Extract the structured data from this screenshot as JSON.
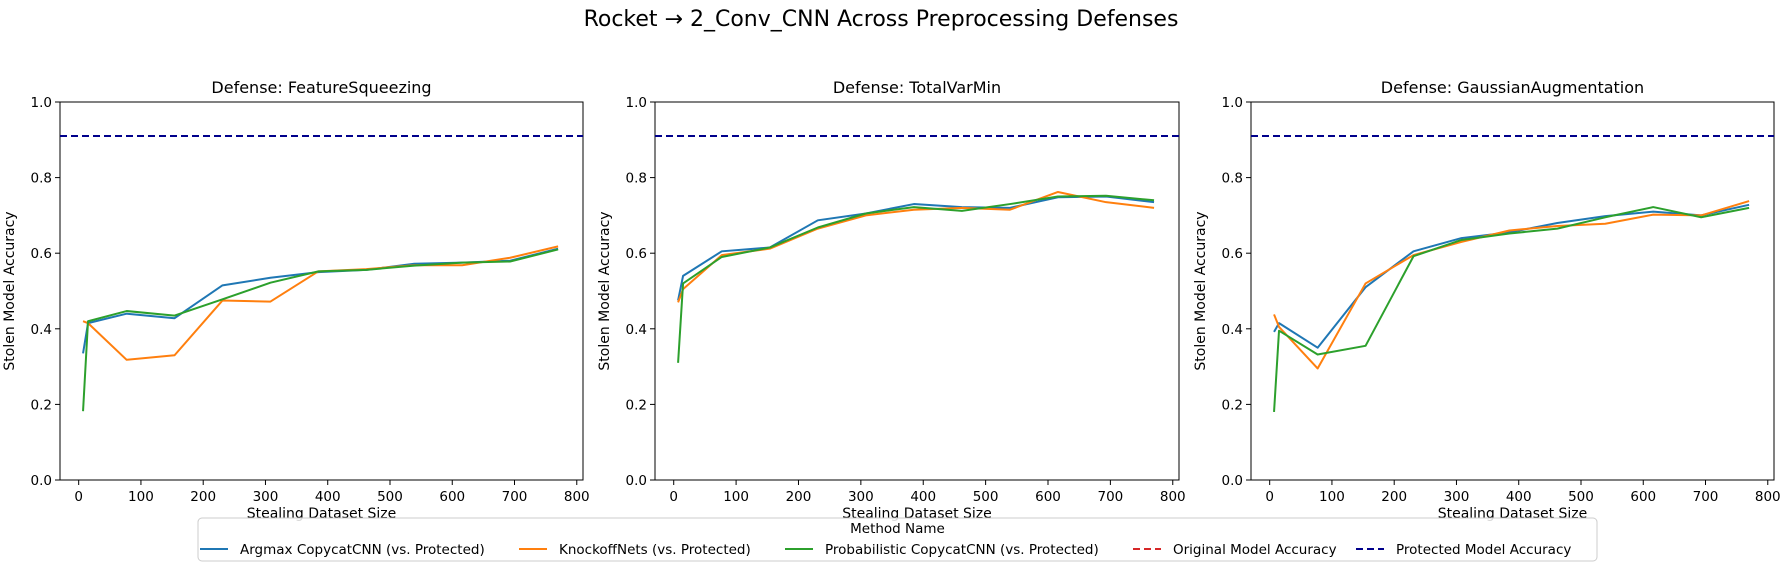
{
  "figure": {
    "suptitle": "Rocket → 2_Conv_CNN Across Preprocessing Defenses"
  },
  "legend": {
    "title": "Method Name",
    "placement": "bottom-center",
    "entries": [
      {
        "label": "Argmax CopycatCNN (vs. Protected)",
        "color": "#1f77b4",
        "style": "solid"
      },
      {
        "label": "KnockoffNets (vs. Protected)",
        "color": "#ff7f0e",
        "style": "solid"
      },
      {
        "label": "Probabilistic CopycatCNN (vs. Protected)",
        "color": "#2ca02c",
        "style": "solid"
      },
      {
        "label": "Original Model Accuracy",
        "color": "#d62728",
        "style": "dashed"
      },
      {
        "label": "Protected Model Accuracy",
        "color": "#00008b",
        "style": "dashed"
      }
    ]
  },
  "chart_data": [
    {
      "type": "line",
      "title": "Defense: FeatureSqueezing",
      "xlabel": "Stealing Dataset Size",
      "ylabel": "Stolen Model Accuracy",
      "xlim": [
        -30,
        810
      ],
      "ylim": [
        0,
        1
      ],
      "xticks": [
        0,
        100,
        200,
        300,
        400,
        500,
        600,
        700,
        800
      ],
      "yticks": [
        0.0,
        0.2,
        0.4,
        0.6,
        0.8,
        1.0
      ],
      "grid": false,
      "x": [
        7,
        15,
        77,
        154,
        231,
        308,
        385,
        462,
        539,
        616,
        693,
        770
      ],
      "series": [
        {
          "name": "Argmax CopycatCNN (vs. Protected)",
          "color": "#1f77b4",
          "values": [
            0.335,
            0.415,
            0.44,
            0.428,
            0.515,
            0.535,
            0.55,
            0.556,
            0.572,
            0.575,
            0.58,
            0.612
          ]
        },
        {
          "name": "KnockoffNets (vs. Protected)",
          "color": "#ff7f0e",
          "values": [
            0.42,
            0.415,
            0.318,
            0.33,
            0.475,
            0.472,
            0.552,
            0.558,
            0.568,
            0.568,
            0.588,
            0.618
          ]
        },
        {
          "name": "Probabilistic CopycatCNN (vs. Protected)",
          "color": "#2ca02c",
          "values": [
            0.182,
            0.42,
            0.447,
            0.435,
            0.478,
            0.522,
            0.552,
            0.556,
            0.567,
            0.575,
            0.578,
            0.61
          ]
        }
      ],
      "hlines": [
        {
          "name": "Protected Model Accuracy",
          "value": 0.91,
          "color": "#00008b",
          "style": "dashed"
        }
      ]
    },
    {
      "type": "line",
      "title": "Defense: TotalVarMin",
      "xlabel": "Stealing Dataset Size",
      "ylabel": "Stolen Model Accuracy",
      "xlim": [
        -30,
        810
      ],
      "ylim": [
        0,
        1
      ],
      "xticks": [
        0,
        100,
        200,
        300,
        400,
        500,
        600,
        700,
        800
      ],
      "yticks": [
        0.0,
        0.2,
        0.4,
        0.6,
        0.8,
        1.0
      ],
      "grid": false,
      "x": [
        7,
        15,
        77,
        154,
        231,
        308,
        385,
        462,
        539,
        616,
        693,
        770
      ],
      "series": [
        {
          "name": "Argmax CopycatCNN (vs. Protected)",
          "color": "#1f77b4",
          "values": [
            0.475,
            0.54,
            0.605,
            0.615,
            0.687,
            0.705,
            0.73,
            0.722,
            0.72,
            0.748,
            0.75,
            0.735
          ]
        },
        {
          "name": "KnockoffNets (vs. Protected)",
          "color": "#ff7f0e",
          "values": [
            0.47,
            0.505,
            0.595,
            0.612,
            0.665,
            0.7,
            0.715,
            0.72,
            0.715,
            0.762,
            0.735,
            0.72
          ]
        },
        {
          "name": "Probabilistic CopycatCNN (vs. Protected)",
          "color": "#2ca02c",
          "values": [
            0.31,
            0.52,
            0.59,
            0.615,
            0.668,
            0.705,
            0.722,
            0.712,
            0.73,
            0.75,
            0.752,
            0.74
          ]
        }
      ],
      "hlines": [
        {
          "name": "Protected Model Accuracy",
          "value": 0.91,
          "color": "#00008b",
          "style": "dashed"
        }
      ]
    },
    {
      "type": "line",
      "title": "Defense: GaussianAugmentation",
      "xlabel": "Stealing Dataset Size",
      "ylabel": "Stolen Model Accuracy",
      "xlim": [
        -30,
        810
      ],
      "ylim": [
        0,
        1
      ],
      "xticks": [
        0,
        100,
        200,
        300,
        400,
        500,
        600,
        700,
        800
      ],
      "yticks": [
        0.0,
        0.2,
        0.4,
        0.6,
        0.8,
        1.0
      ],
      "grid": false,
      "x": [
        7,
        15,
        77,
        154,
        231,
        308,
        385,
        462,
        539,
        616,
        693,
        770
      ],
      "series": [
        {
          "name": "Argmax CopycatCNN (vs. Protected)",
          "color": "#1f77b4",
          "values": [
            0.392,
            0.415,
            0.35,
            0.51,
            0.605,
            0.64,
            0.655,
            0.68,
            0.698,
            0.71,
            0.7,
            0.728
          ]
        },
        {
          "name": "KnockoffNets (vs. Protected)",
          "color": "#ff7f0e",
          "values": [
            0.438,
            0.405,
            0.295,
            0.52,
            0.595,
            0.63,
            0.66,
            0.672,
            0.678,
            0.702,
            0.7,
            0.738
          ]
        },
        {
          "name": "Probabilistic CopycatCNN (vs. Protected)",
          "color": "#2ca02c",
          "values": [
            0.18,
            0.395,
            0.332,
            0.355,
            0.592,
            0.635,
            0.652,
            0.665,
            0.695,
            0.722,
            0.695,
            0.72
          ]
        }
      ],
      "hlines": [
        {
          "name": "Protected Model Accuracy",
          "value": 0.91,
          "color": "#00008b",
          "style": "dashed"
        }
      ]
    }
  ]
}
